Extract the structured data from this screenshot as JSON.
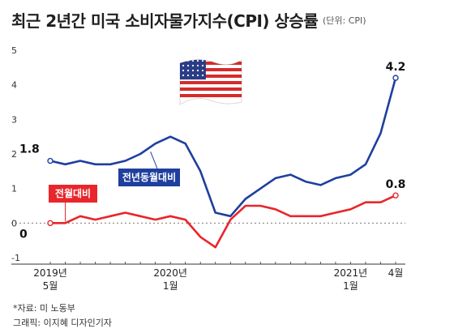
{
  "header": {
    "title": "최근 2년간 미국 소비자물가지수(CPI) 상승률",
    "unit": "(단위: CPI)"
  },
  "footer": {
    "source": "*자료: 미 노동부",
    "credit": "그래픽: 이지혜 디자인기자"
  },
  "colors": {
    "blue_series": "#1f3f9e",
    "red_series": "#e8262b",
    "axis": "#333333",
    "zero_line": "#666666"
  },
  "icons": [
    "us-flag-icon"
  ],
  "chart_data": {
    "type": "line",
    "title": "최근 2년간 미국 소비자물가지수(CPI) 상승률",
    "ylim": [
      -1,
      5
    ],
    "y_ticks": [
      "5",
      "4",
      "3",
      "2",
      "1",
      "0",
      "-1"
    ],
    "y_tick_values": [
      5,
      4,
      3,
      2,
      1,
      0,
      -1
    ],
    "x_count": 24,
    "x_labels": [
      {
        "index": 0,
        "line1": "2019년",
        "line2": "5월"
      },
      {
        "index": 8,
        "line1": "2020년",
        "line2": "1월"
      },
      {
        "index": 20,
        "line1": "2021년",
        "line2": "1월"
      },
      {
        "index": 23,
        "line1": "4월",
        "line2": ""
      }
    ],
    "series": [
      {
        "name": "전년동월대비",
        "color": "#1f3f9e",
        "values": [
          1.8,
          1.7,
          1.8,
          1.7,
          1.7,
          1.8,
          2.0,
          2.3,
          2.5,
          2.3,
          1.5,
          0.3,
          0.2,
          0.7,
          1.0,
          1.3,
          1.4,
          1.2,
          1.1,
          1.3,
          1.4,
          1.7,
          2.6,
          4.2
        ],
        "start_label": "1.8",
        "end_label": "4.2",
        "box_label": "전년동월대비"
      },
      {
        "name": "전월대비",
        "color": "#e8262b",
        "values": [
          0.0,
          0.0,
          0.2,
          0.1,
          0.2,
          0.3,
          0.2,
          0.1,
          0.2,
          0.1,
          -0.4,
          -0.7,
          0.1,
          0.5,
          0.5,
          0.4,
          0.2,
          0.2,
          0.2,
          0.3,
          0.4,
          0.6,
          0.6,
          0.8
        ],
        "start_label": "0",
        "end_label": "0.8",
        "box_label": "전월대비"
      }
    ]
  }
}
